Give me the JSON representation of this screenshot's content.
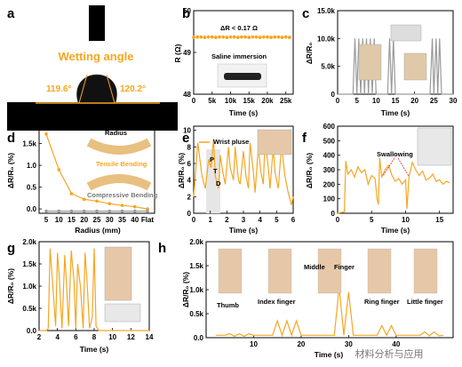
{
  "colors": {
    "accent": "#f5a623",
    "gray": "#9b9b9b",
    "tissue": "#1a1a1a"
  },
  "panels": {
    "a": {
      "label": "a",
      "title": "Wetting angle",
      "left_angle": "119.6°",
      "right_angle": "120.2°"
    },
    "b": {
      "label": "b",
      "annotation": "ΔR < 0.17 Ω",
      "inset": "Saline immersion",
      "xlabel": "Time (s)",
      "ylabel": "R (Ω)"
    },
    "c": {
      "label": "c",
      "xlabel": "Time (s)",
      "ylabel": "ΔR/R₀"
    },
    "d": {
      "label": "d",
      "xlabel": "Radius (mm)",
      "ylabel": "ΔR/R₀ (%)",
      "inset_radius": "Radius",
      "inset_tensile": "Tensile Bending",
      "inset_compressive": "Compressive Bending"
    },
    "e": {
      "label": "e",
      "legend": "Wrist pluse",
      "xlabel": "Time (s)",
      "ylabel": "ΔR/R₀ (%)",
      "peak_P": "P",
      "peak_T": "T",
      "peak_D": "D"
    },
    "f": {
      "label": "f",
      "xlabel": "Time (s)",
      "ylabel": "ΔR/R₀ (%)",
      "annotation": "Swallowing"
    },
    "g": {
      "label": "g",
      "xlabel": "Time (s)",
      "ylabel": "ΔR/R₀ (%)"
    },
    "h": {
      "label": "h",
      "xlabel": "Time (s)",
      "ylabel": "ΔR/R₀ (%)",
      "fingers": [
        "Thumb",
        "Index finger",
        "Middle",
        "Finger",
        "Ring finger",
        "Little finger"
      ]
    }
  },
  "watermark": "材料分析与应用",
  "chart_data": [
    {
      "type": "scatter",
      "panel": "b",
      "x": [
        0,
        1000,
        2000,
        3000,
        4000,
        5000,
        6000,
        7000,
        8000,
        9000,
        10000,
        11000,
        12000,
        13000,
        14000,
        15000,
        16000,
        17000,
        18000,
        19000,
        20000,
        21000,
        22000,
        23000,
        24000,
        25000,
        26000
      ],
      "y": [
        49.36,
        49.37,
        49.37,
        49.36,
        49.37,
        49.37,
        49.36,
        49.37,
        49.37,
        49.36,
        49.37,
        49.37,
        49.36,
        49.37,
        49.37,
        49.36,
        49.37,
        49.37,
        49.36,
        49.37,
        49.37,
        49.36,
        49.37,
        49.37,
        49.36,
        49.37,
        49.36
      ],
      "xticks": [
        "0",
        "5k",
        "10k",
        "15k",
        "20k",
        "25k"
      ],
      "yticks": [
        "48",
        "49",
        "50"
      ],
      "xlim": [
        0,
        27000
      ],
      "ylim": [
        48,
        50
      ]
    },
    {
      "type": "line",
      "panel": "c",
      "x": [
        0,
        4,
        4.5,
        5,
        5.5,
        6,
        6.5,
        7,
        7.5,
        8,
        8.5,
        9,
        9.5,
        10,
        13,
        13.5,
        14,
        14.5,
        15,
        19,
        21,
        24,
        24.6,
        25,
        25.6,
        26,
        26.5,
        27,
        30
      ],
      "y": [
        0,
        0,
        10,
        0,
        10,
        0,
        10,
        0,
        10,
        0,
        10,
        0,
        10,
        0,
        0,
        10,
        0,
        10,
        0,
        0,
        0,
        0,
        10,
        0,
        10,
        0,
        10,
        0,
        0
      ],
      "xticks": [
        "0",
        "5",
        "10",
        "15",
        "20",
        "25",
        "30"
      ],
      "yticks": [
        "0",
        "5.0k",
        "10.0k",
        "15.0k"
      ],
      "xlim": [
        0,
        30
      ],
      "ylim": [
        0,
        15
      ]
    },
    {
      "type": "line",
      "panel": "d",
      "categories": [
        "5",
        "10",
        "15",
        "20",
        "25",
        "30",
        "35",
        "40",
        "Flat"
      ],
      "series": [
        {
          "name": "Tensile Bending",
          "values": [
            1.72,
            0.9,
            0.35,
            0.22,
            0.18,
            0.12,
            0.08,
            0.05,
            0.0
          ]
        },
        {
          "name": "Compressive Bending",
          "values": [
            -0.05,
            -0.05,
            -0.05,
            -0.05,
            -0.05,
            -0.05,
            -0.05,
            -0.05,
            -0.05
          ]
        }
      ],
      "yticks": [
        "0.0",
        "0.5",
        "1.0",
        "1.5k"
      ],
      "ylim": [
        -0.1,
        1.9
      ]
    },
    {
      "type": "line",
      "panel": "e",
      "x": [
        0,
        0.25,
        0.5,
        0.7,
        0.9,
        1.05,
        1.2,
        1.3,
        1.5,
        1.6,
        1.75,
        1.9,
        2.1,
        2.2,
        2.4,
        2.5,
        2.7,
        2.8,
        3.0,
        3.15,
        3.3,
        3.4,
        3.6,
        3.7,
        3.9,
        4.05,
        4.2,
        4.3,
        4.5,
        4.6,
        4.8,
        4.9,
        5.1,
        5.3,
        5.5,
        5.7,
        5.9,
        6.0
      ],
      "y": [
        2,
        8.5,
        4.5,
        3,
        6.5,
        5.5,
        9,
        4.5,
        3,
        7,
        5,
        3.5,
        8,
        5.5,
        4,
        8,
        4,
        3.5,
        7.5,
        4.5,
        3,
        8.5,
        5,
        2.5,
        8,
        5,
        3.5,
        8.8,
        5.5,
        3,
        8,
        5,
        3,
        8.2,
        4.5,
        2.5,
        1,
        2
      ],
      "xticks": [
        "0",
        "1",
        "2",
        "3",
        "4",
        "5",
        "6"
      ],
      "yticks": [
        "0",
        "2",
        "4",
        "6",
        "8",
        "10"
      ],
      "xlim": [
        0,
        6
      ],
      "ylim": [
        0,
        10.5
      ]
    },
    {
      "type": "line",
      "panel": "f",
      "x": [
        0,
        0.5,
        1,
        1.2,
        1.5,
        2,
        2.5,
        3,
        3.5,
        4,
        4.5,
        5,
        5.5,
        5.8,
        6,
        6.2,
        6.5,
        7,
        7.5,
        8,
        8.5,
        9,
        9.5,
        10,
        10.2,
        10.5,
        11,
        11.5,
        12,
        12.5,
        13,
        13.5,
        14,
        14.5,
        15,
        15.5,
        16,
        16.5
      ],
      "y": [
        0,
        5,
        10,
        360,
        270,
        300,
        250,
        320,
        280,
        300,
        200,
        260,
        240,
        100,
        60,
        380,
        250,
        300,
        330,
        260,
        220,
        240,
        200,
        230,
        30,
        250,
        350,
        300,
        260,
        290,
        230,
        240,
        270,
        220,
        230,
        200,
        220,
        210
      ],
      "xticks": [
        "0",
        "5",
        "10",
        "15"
      ],
      "yticks": [
        "0",
        "100",
        "200",
        "300",
        "400",
        "500",
        "600"
      ],
      "xlim": [
        0,
        17
      ],
      "ylim": [
        0,
        600
      ]
    },
    {
      "type": "line",
      "panel": "g",
      "x": [
        2,
        2.8,
        3,
        3.2,
        3.5,
        3.8,
        4,
        4.2,
        4.5,
        4.8,
        5,
        5.2,
        5.5,
        5.8,
        6,
        6.2,
        6.5,
        6.8,
        7,
        7.2,
        7.5,
        7.8,
        8,
        8.2,
        8.5,
        9,
        10,
        11,
        12,
        13,
        14
      ],
      "y": [
        0,
        0,
        0.05,
        1.85,
        1.0,
        0.1,
        1.75,
        1.2,
        0.05,
        1.7,
        1.0,
        0.1,
        1.8,
        1.1,
        0.05,
        1.5,
        1.0,
        0.05,
        1.75,
        1.2,
        0.05,
        0.3,
        1.85,
        0.1,
        0.0,
        0.0,
        0.0,
        0.0,
        0.0,
        0.0,
        0.0
      ],
      "xticks": [
        "2",
        "4",
        "6",
        "8",
        "10",
        "12",
        "14"
      ],
      "yticks": [
        "0.0",
        "0.5k",
        "1.0k",
        "1.5k",
        "2.0k"
      ],
      "xlim": [
        2,
        14
      ],
      "ylim": [
        0,
        2.0
      ]
    },
    {
      "type": "line",
      "panel": "h",
      "x": [
        2,
        4,
        5,
        6,
        7,
        8,
        9,
        10,
        14,
        15,
        16,
        17,
        18,
        19,
        20,
        21,
        25,
        27,
        28,
        29,
        30,
        31,
        32,
        36,
        37,
        38,
        39,
        40,
        41,
        45,
        46,
        47,
        48,
        49,
        50
      ],
      "y": [
        0.05,
        0.05,
        0.08,
        0.03,
        0.08,
        0.03,
        0.08,
        0.05,
        0.05,
        0.35,
        0.05,
        0.35,
        0.05,
        0.35,
        0.05,
        0.05,
        0.05,
        0.05,
        1.05,
        0.05,
        0.95,
        0.05,
        0.05,
        0.05,
        0.25,
        0.05,
        0.25,
        0.05,
        0.05,
        0.05,
        0.12,
        0.04,
        0.12,
        0.04,
        0.05
      ],
      "xticks": [
        "10",
        "20",
        "30",
        "40"
      ],
      "yticks": [
        "0.0",
        "0.5k",
        "1.0k",
        "1.5k",
        "2.0k"
      ],
      "xlim": [
        0,
        52
      ],
      "ylim": [
        0,
        2.0
      ]
    }
  ]
}
